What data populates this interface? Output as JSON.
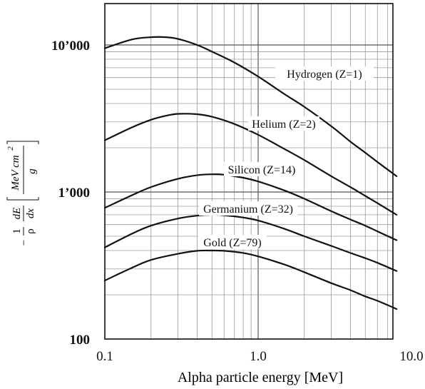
{
  "chart_data": {
    "type": "line",
    "title": "",
    "xlabel": "Alpha particle energy [MeV]",
    "ylabel": {
      "prefix": "−",
      "one": "1",
      "rho": "ρ",
      "dE": "dE",
      "dx": "dx",
      "unit_num": "MeV  cm",
      "unit_exp": "2",
      "unit_den": "g"
    },
    "x_scale": "log",
    "y_scale": "log",
    "xlim": [
      0.1,
      8
    ],
    "ylim": [
      100,
      20000
    ],
    "grid": true,
    "x_ticks": [
      {
        "value": 0.1,
        "label": "0.1"
      },
      {
        "value": 1,
        "label": "1.0"
      },
      {
        "value": 10,
        "label": "10.0"
      }
    ],
    "y_ticks": [
      {
        "value": 100,
        "label": "100"
      },
      {
        "value": 1000,
        "label": "1’000"
      },
      {
        "value": 10000,
        "label": "10’000"
      }
    ],
    "series": [
      {
        "name": "Hydrogen (Z=1)",
        "x": [
          0.1,
          0.15,
          0.2,
          0.25,
          0.3,
          0.4,
          0.5,
          0.7,
          1.0,
          1.5,
          2.0,
          3.0,
          4.0,
          5.0,
          6.0,
          8.0
        ],
        "y": [
          9500,
          10900,
          11300,
          11300,
          11000,
          10000,
          9000,
          7600,
          6100,
          4600,
          3800,
          2800,
          2200,
          1850,
          1600,
          1280
        ]
      },
      {
        "name": "Helium (Z=2)",
        "x": [
          0.1,
          0.15,
          0.2,
          0.25,
          0.3,
          0.4,
          0.5,
          0.7,
          1.0,
          1.5,
          2.0,
          3.0,
          4.0,
          5.0,
          6.0,
          8.0
        ],
        "y": [
          2250,
          2750,
          3100,
          3300,
          3400,
          3380,
          3250,
          2900,
          2450,
          1950,
          1650,
          1280,
          1080,
          940,
          840,
          700
        ]
      },
      {
        "name": "Silicon (Z=14)",
        "x": [
          0.1,
          0.15,
          0.2,
          0.3,
          0.4,
          0.5,
          0.6,
          0.8,
          1.0,
          1.5,
          2.0,
          3.0,
          4.0,
          5.0,
          6.0,
          8.0
        ],
        "y": [
          780,
          950,
          1080,
          1230,
          1300,
          1320,
          1310,
          1250,
          1180,
          1020,
          900,
          740,
          650,
          590,
          540,
          470
        ]
      },
      {
        "name": "Germanium (Z=32)",
        "x": [
          0.1,
          0.15,
          0.2,
          0.3,
          0.4,
          0.5,
          0.6,
          0.8,
          1.0,
          1.5,
          2.0,
          3.0,
          4.0,
          5.0,
          6.0,
          8.0
        ],
        "y": [
          420,
          520,
          590,
          660,
          690,
          700,
          695,
          670,
          640,
          560,
          500,
          430,
          385,
          355,
          330,
          290
        ]
      },
      {
        "name": "Gold (Z=79)",
        "x": [
          0.1,
          0.15,
          0.2,
          0.3,
          0.4,
          0.5,
          0.6,
          0.8,
          1.0,
          1.5,
          2.0,
          3.0,
          4.0,
          5.0,
          6.0,
          8.0
        ],
        "y": [
          250,
          305,
          345,
          380,
          398,
          400,
          398,
          385,
          365,
          320,
          285,
          240,
          215,
          195,
          182,
          160
        ]
      }
    ],
    "line_color": "#111111",
    "grid_color": "#9a9a9a"
  }
}
